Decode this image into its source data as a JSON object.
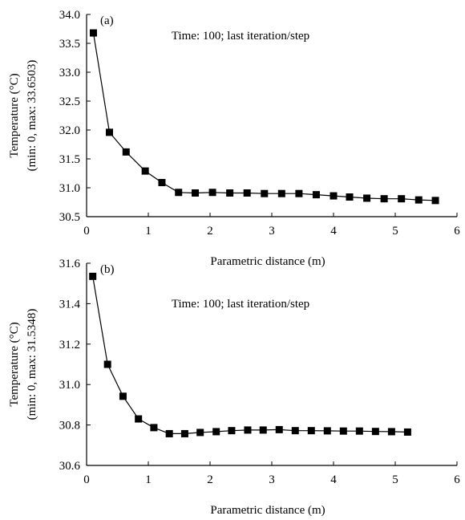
{
  "chart_data": [
    {
      "type": "line",
      "panel_label": "(a)",
      "annotation": "Time: 100; last iteration/step",
      "xlabel": "Parametric distance (m)",
      "ylabel": [
        "Temperature (°C)",
        "(min: 0, max: 33.6503)"
      ],
      "xlim": [
        0,
        6
      ],
      "ylim": [
        30.5,
        34.0
      ],
      "xticks": [
        0,
        1,
        2,
        3,
        4,
        5,
        6
      ],
      "yticks": [
        30.5,
        31.0,
        31.5,
        32.0,
        32.5,
        33.0,
        33.5,
        34.0
      ],
      "ytick_decimals": 1,
      "marker": "square",
      "color": "#000000",
      "series": [
        {
          "x": [
            0.11,
            0.37,
            0.64,
            0.95,
            1.22,
            1.49,
            1.76,
            2.04,
            2.32,
            2.6,
            2.88,
            3.16,
            3.44,
            3.72,
            4.0,
            4.26,
            4.54,
            4.82,
            5.1,
            5.38,
            5.65
          ],
          "values": [
            33.68,
            31.96,
            31.62,
            31.29,
            31.09,
            30.92,
            30.91,
            30.92,
            30.91,
            30.91,
            30.9,
            30.9,
            30.9,
            30.88,
            30.86,
            30.84,
            30.82,
            30.81,
            30.81,
            30.79,
            30.78
          ]
        }
      ]
    },
    {
      "type": "line",
      "panel_label": "(b)",
      "annotation": "Time: 100; last iteration/step",
      "xlabel": "Parametric distance (m)",
      "ylabel": [
        "Temperature (°C)",
        "(min: 0, max: 31.5348)"
      ],
      "xlim": [
        0,
        6
      ],
      "ylim": [
        30.6,
        31.6
      ],
      "xticks": [
        0,
        1,
        2,
        3,
        4,
        5,
        6
      ],
      "yticks": [
        30.6,
        30.8,
        31.0,
        31.2,
        31.4,
        31.6
      ],
      "ytick_decimals": 1,
      "marker": "square",
      "color": "#000000",
      "series": [
        {
          "x": [
            0.1,
            0.34,
            0.59,
            0.84,
            1.09,
            1.34,
            1.59,
            1.84,
            2.1,
            2.35,
            2.61,
            2.86,
            3.12,
            3.38,
            3.64,
            3.9,
            4.16,
            4.42,
            4.68,
            4.94,
            5.2
          ],
          "values": [
            31.535,
            31.1,
            30.942,
            30.83,
            30.787,
            30.757,
            30.757,
            30.763,
            30.767,
            30.772,
            30.775,
            30.775,
            30.777,
            30.772,
            30.772,
            30.771,
            30.77,
            30.77,
            30.768,
            30.767,
            30.765
          ]
        }
      ]
    }
  ]
}
